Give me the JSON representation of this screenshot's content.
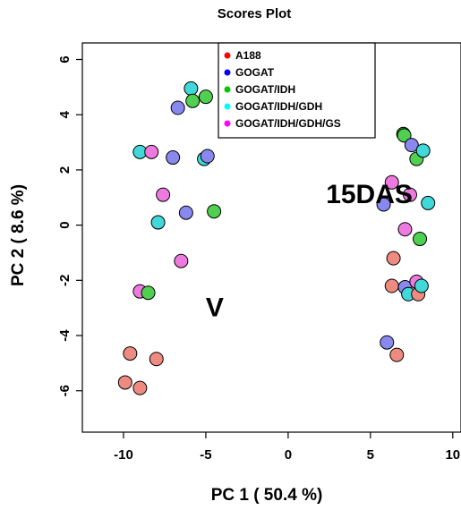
{
  "chart_data": {
    "type": "scatter",
    "title": "Scores Plot",
    "xlabel": "PC 1 ( 50.4 %)",
    "ylabel": "PC 2 ( 8.6 %)",
    "xlim": [
      -12.5,
      10.5
    ],
    "ylim": [
      -7.5,
      6.6
    ],
    "xticks": [
      -10,
      -5,
      0,
      5,
      10
    ],
    "xtick_labels": [
      "-10",
      "-5",
      "0",
      "5",
      "10"
    ],
    "yticks": [
      -6,
      -4,
      -2,
      0,
      2,
      4,
      6
    ],
    "ytick_labels": [
      "-6",
      "-4",
      "-2",
      "0",
      "2",
      "4",
      "6"
    ],
    "grid": false,
    "legend_position": "top-center",
    "legend": [
      {
        "name": "A188",
        "color": "#ff0000"
      },
      {
        "name": "GOGAT",
        "color": "#0000ff"
      },
      {
        "name": "GOGAT/IDH",
        "color": "#00c800"
      },
      {
        "name": "GOGAT/IDH/GDH",
        "color": "#00ffff"
      },
      {
        "name": "GOGAT/IDH/GDH/GS",
        "color": "#ff00ff"
      }
    ],
    "annotations": [
      {
        "text": "V",
        "x": -5.0,
        "y": -3.3
      },
      {
        "text": "15DAS",
        "x": 2.3,
        "y": 0.8
      }
    ],
    "points": [
      {
        "x": -9.9,
        "y": -5.7,
        "color": "#ee8a80"
      },
      {
        "x": -9.6,
        "y": -4.65,
        "color": "#ee8a80"
      },
      {
        "x": -9.0,
        "y": -5.9,
        "color": "#ee8a80"
      },
      {
        "x": -8.0,
        "y": -4.85,
        "color": "#ee8a80"
      },
      {
        "x": -9.0,
        "y": -2.4,
        "color": "#ee7ae0"
      },
      {
        "x": -8.5,
        "y": -2.45,
        "color": "#50d050"
      },
      {
        "x": -9.0,
        "y": 2.65,
        "color": "#40d8d8"
      },
      {
        "x": -8.3,
        "y": 2.65,
        "color": "#ee7ae0"
      },
      {
        "x": -7.6,
        "y": 1.1,
        "color": "#ee7ae0"
      },
      {
        "x": -7.9,
        "y": 0.1,
        "color": "#40d8d8"
      },
      {
        "x": -7.0,
        "y": 2.45,
        "color": "#8888ee"
      },
      {
        "x": -6.7,
        "y": 4.25,
        "color": "#8888ee"
      },
      {
        "x": -6.5,
        "y": -1.3,
        "color": "#ee7ae0"
      },
      {
        "x": -6.2,
        "y": 0.45,
        "color": "#8888ee"
      },
      {
        "x": -5.9,
        "y": 4.95,
        "color": "#40d8d8"
      },
      {
        "x": -5.8,
        "y": 4.5,
        "color": "#50d050"
      },
      {
        "x": -5.1,
        "y": 2.4,
        "color": "#40d8d8"
      },
      {
        "x": -4.9,
        "y": 2.5,
        "color": "#8888ee"
      },
      {
        "x": -5.0,
        "y": 4.65,
        "color": "#50d050"
      },
      {
        "x": -4.5,
        "y": 0.5,
        "color": "#50d050"
      },
      {
        "x": 5.8,
        "y": 0.75,
        "color": "#8888ee"
      },
      {
        "x": 6.3,
        "y": 1.55,
        "color": "#ee7ae0"
      },
      {
        "x": 6.0,
        "y": -4.25,
        "color": "#8888ee"
      },
      {
        "x": 6.6,
        "y": -4.7,
        "color": "#ee8a80"
      },
      {
        "x": 6.4,
        "y": -1.2,
        "color": "#ee8a80"
      },
      {
        "x": 6.3,
        "y": -2.2,
        "color": "#ee8a80"
      },
      {
        "x": 7.0,
        "y": 3.3,
        "color": "#20a020"
      },
      {
        "x": 7.05,
        "y": 3.25,
        "color": "#50d050"
      },
      {
        "x": 7.1,
        "y": -0.15,
        "color": "#ee7ae0"
      },
      {
        "x": 7.1,
        "y": -2.25,
        "color": "#8888ee"
      },
      {
        "x": 7.3,
        "y": -2.5,
        "color": "#40d8d8"
      },
      {
        "x": 7.4,
        "y": 1.1,
        "color": "#ee7ae0"
      },
      {
        "x": 7.5,
        "y": 2.9,
        "color": "#8888ee"
      },
      {
        "x": 7.8,
        "y": 2.4,
        "color": "#50d050"
      },
      {
        "x": 7.8,
        "y": -2.05,
        "color": "#ee7ae0"
      },
      {
        "x": 7.9,
        "y": -2.5,
        "color": "#ee8a80"
      },
      {
        "x": 8.0,
        "y": -0.5,
        "color": "#50d050"
      },
      {
        "x": 8.1,
        "y": -2.2,
        "color": "#40d8d8"
      },
      {
        "x": 8.2,
        "y": 2.7,
        "color": "#40d8d8"
      },
      {
        "x": 8.5,
        "y": 0.8,
        "color": "#40d8d8"
      }
    ]
  }
}
